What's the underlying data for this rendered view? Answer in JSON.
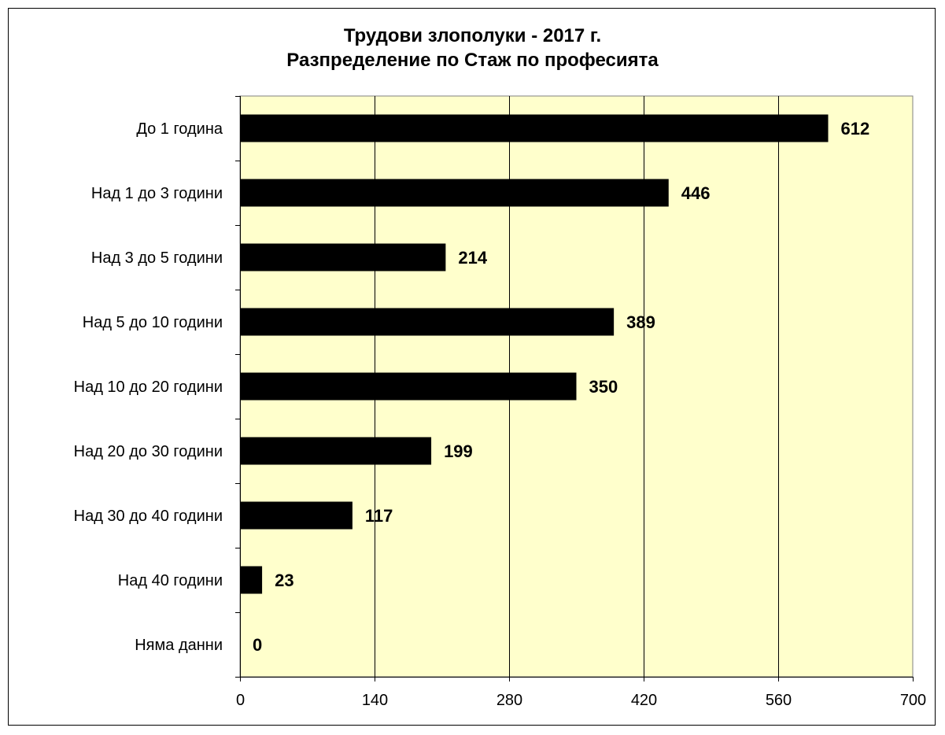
{
  "chart_data": {
    "type": "bar",
    "orientation": "horizontal",
    "title": "Трудови злополуки - 2017 г.",
    "subtitle": "Разпределение по Стаж по професията",
    "categories": [
      "До 1 година",
      "Над 1 до 3 години",
      "Над 3 до 5 години",
      "Над 5 до 10 години",
      "Над 10 до 20 години",
      "Над 20 до 30 години",
      "Над 30 до 40 години",
      "Над 40 години",
      "Няма данни"
    ],
    "values": [
      612,
      446,
      214,
      389,
      350,
      199,
      117,
      23,
      0
    ],
    "xlim": [
      0,
      700
    ],
    "xticks": [
      0,
      140,
      280,
      420,
      560,
      700
    ],
    "xtick_labels": [
      "0",
      "140",
      "280",
      "420",
      "560",
      "700"
    ],
    "grid": true,
    "legend": "none",
    "colors": {
      "bar": "#000000",
      "plot_background": "#ffffcc",
      "gridline": "#000000"
    }
  }
}
